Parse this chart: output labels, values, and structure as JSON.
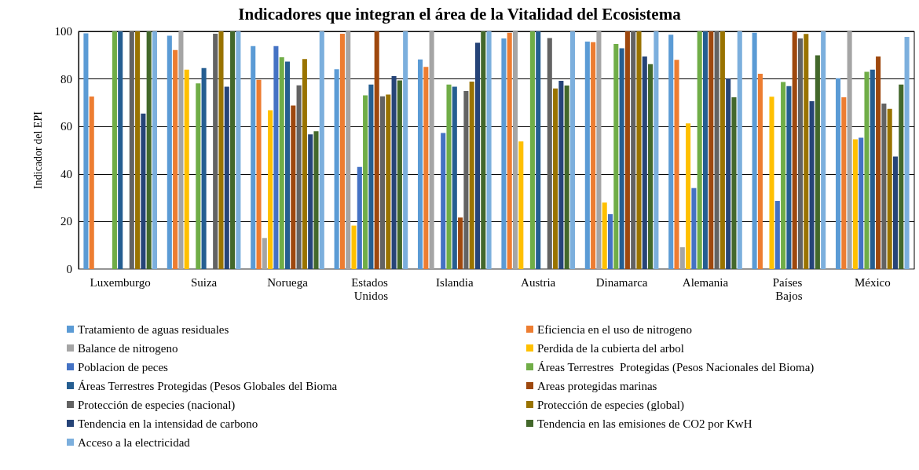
{
  "chart_data": {
    "type": "bar",
    "title": "Indicadores que integran el área de la Vitalidad del Ecosistema",
    "ylabel": "Indicador del EPI",
    "categories": [
      "Luxemburgo",
      "Suiza",
      "Noruega",
      "Estados Unidos",
      "Islandia",
      "Austria",
      "Dinamarca",
      "Alemania",
      "Países Bajos",
      "México"
    ],
    "ylim": [
      0,
      100
    ],
    "yticks": [
      0,
      20,
      40,
      60,
      80,
      100
    ],
    "grid": "y",
    "legend": "bottom",
    "series": [
      {
        "name": "Tratamiento de aguas residuales",
        "color": "#5b9bd5",
        "values": [
          99.2,
          98.2,
          93.8,
          84.1,
          88.2,
          97.0,
          95.7,
          98.6,
          99.4,
          80.3
        ]
      },
      {
        "name": "Eficiencia en el uso de nitrogeno",
        "color": "#ed7d31",
        "values": [
          72.6,
          92.2,
          79.6,
          99.0,
          85.1,
          99.4,
          95.5,
          88.0,
          82.2,
          72.3
        ]
      },
      {
        "name": "Balance de nitrogeno",
        "color": "#a5a5a5",
        "values": [
          0,
          100,
          13.1,
          100,
          100,
          100,
          100,
          9.2,
          0,
          100
        ]
      },
      {
        "name": "Perdida de la cubierta del arbol",
        "color": "#ffc000",
        "values": [
          0,
          83.9,
          66.8,
          18.3,
          0,
          53.7,
          28.0,
          61.3,
          72.5,
          54.6
        ]
      },
      {
        "name": "Poblacion de peces",
        "color": "#4472c4",
        "values": [
          0,
          0,
          93.8,
          43.0,
          57.3,
          0,
          23.1,
          34.1,
          28.7,
          55.3
        ]
      },
      {
        "name": "Áreas Terrestres  Protegidas (Pesos Nacionales del Bioma)",
        "color": "#70ad47",
        "values": [
          100,
          78.1,
          89.1,
          73.1,
          77.6,
          100,
          94.7,
          100,
          78.7,
          83.0
        ]
      },
      {
        "name": "Áreas Terrestres Protegidas (Pesos Globales del Bioma",
        "color": "#255e91",
        "values": [
          100,
          84.6,
          87.3,
          77.6,
          76.7,
          100,
          92.9,
          100,
          77.0,
          83.9
        ]
      },
      {
        "name": "Areas protegidas marinas",
        "color": "#9e480e",
        "values": [
          0,
          0,
          68.8,
          100,
          21.7,
          0,
          100,
          100,
          100,
          89.4
        ]
      },
      {
        "name": "Protección de especies (nacional)",
        "color": "#636363",
        "values": [
          100,
          99.0,
          77.3,
          72.7,
          74.9,
          97.2,
          100,
          100,
          97.0,
          69.6
        ]
      },
      {
        "name": "Protección de especies (global)",
        "color": "#997300",
        "values": [
          100,
          100,
          88.4,
          73.4,
          78.9,
          76.0,
          100,
          100,
          98.9,
          67.4
        ]
      },
      {
        "name": "Tendencia en la intensidad de carbono",
        "color": "#264478",
        "values": [
          65.4,
          76.7,
          56.7,
          81.2,
          95.2,
          79.2,
          89.4,
          80.1,
          70.6,
          47.4
        ]
      },
      {
        "name": "Tendencia en las emisiones de CO2 por KwH",
        "color": "#43682b",
        "values": [
          100,
          100,
          58.0,
          79.4,
          100,
          77.2,
          86.2,
          72.3,
          89.9,
          77.6
        ]
      },
      {
        "name": "Acceso a la electricidad",
        "color": "#7cafdd",
        "values": [
          100,
          100,
          100,
          100,
          100,
          100,
          100,
          100,
          100,
          97.7
        ]
      }
    ]
  }
}
